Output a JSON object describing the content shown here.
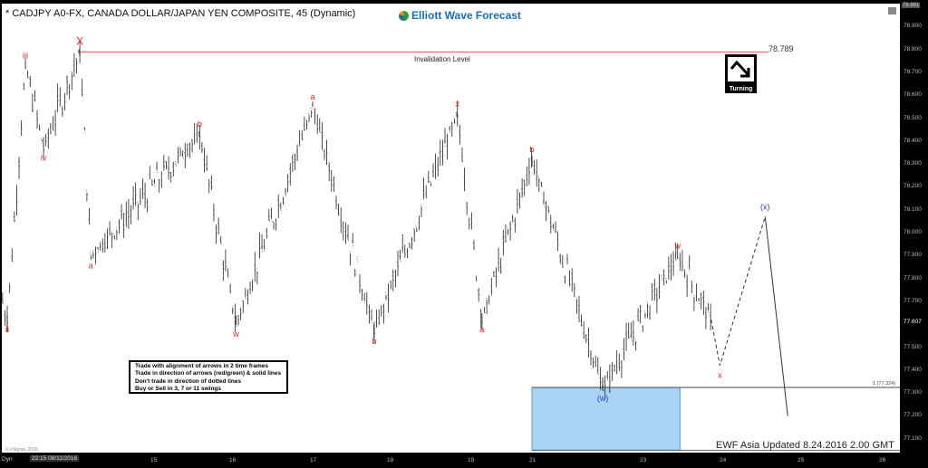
{
  "header": {
    "title": "* CADJPY A0-FX, CANADA DOLLAR/JAPAN YEN COMPOSITE, 45 (Dynamic)",
    "logo_text": "Elliott Wave Forecast"
  },
  "info_box": [
    "Trade with alignment of arrows in 2 time frames",
    "Trade in direction of arrows (red/green) & solid lines",
    "Don't trade in direction of dotted lines",
    "Buy or Sell in 3, 7 or 11 swings"
  ],
  "turning_label": "Turning",
  "footer": {
    "updated": "EWF Asia Updated 8.24.2016 2.00 GMT",
    "copyright": "© eSignal, 2016",
    "dyn": "Dyn",
    "start_label": "22:15 08/11/2016"
  },
  "colors": {
    "wave_red": "#d42a1e",
    "wave_blue": "#2b3fc4",
    "invalidation": "#e05050",
    "zone": "#aad4f5"
  },
  "chart_data": {
    "type": "bar",
    "symbol": "CADJPY",
    "y_axis": {
      "top_label": "78.991",
      "ticks": [
        "78.900",
        "78.800",
        "78.700",
        "78.600",
        "78.500",
        "78.400",
        "78.300",
        "78.200",
        "78.100",
        "78.000",
        "77.900",
        "77.800",
        "77.700",
        "77.607",
        "77.500",
        "77.400",
        "77.300",
        "77.200",
        "77.100"
      ],
      "ylim": [
        77.04,
        78.99
      ]
    },
    "x_axis": {
      "ticks": [
        "15",
        "16",
        "17",
        "18",
        "19",
        "21",
        "23",
        "24",
        "25",
        "26"
      ]
    },
    "price_path": [
      [
        13.09,
        77.7
      ],
      [
        13.15,
        77.62
      ],
      [
        13.38,
        78.73
      ],
      [
        13.61,
        78.37
      ],
      [
        14.07,
        78.789
      ],
      [
        14.21,
        77.9
      ],
      [
        15.59,
        78.43
      ],
      [
        16.05,
        77.6
      ],
      [
        17.0,
        78.55
      ],
      [
        17.8,
        77.57
      ],
      [
        18.84,
        78.52
      ],
      [
        19.38,
        77.62
      ],
      [
        21.0,
        78.32
      ],
      [
        22.28,
        77.32
      ],
      [
        23.44,
        77.9
      ],
      [
        23.86,
        77.62
      ]
    ],
    "projection": {
      "dashed": [
        [
          23.86,
          77.62
        ],
        [
          23.97,
          77.42
        ],
        [
          24.55,
          78.07
        ]
      ],
      "solid": [
        [
          24.55,
          78.07
        ],
        [
          24.84,
          77.2
        ]
      ]
    },
    "invalidation": {
      "label": "Invalidation Level",
      "value": "78.789",
      "price": 78.789,
      "from": 14.07,
      "to": 24.6
    },
    "fib_level": {
      "label": "1 (77.324)",
      "price": 77.324
    },
    "target_zone": {
      "from": 21.0,
      "to": 23.47,
      "high": 77.324,
      "low": 77.05
    },
    "current_price": "77.607",
    "wave_labels": [
      {
        "text": "ii",
        "x": 13.15,
        "price": 77.62,
        "pos": "below",
        "color": "red"
      },
      {
        "text": "iii",
        "x": 13.38,
        "price": 78.73,
        "pos": "above",
        "color": "red"
      },
      {
        "text": "iv",
        "x": 13.61,
        "price": 78.37,
        "pos": "below",
        "color": "red"
      },
      {
        "text": "X",
        "x": 14.07,
        "price": 78.789,
        "pos": "above",
        "color": "red"
      },
      {
        "text": "a",
        "x": 14.21,
        "price": 77.9,
        "pos": "below",
        "color": "red"
      },
      {
        "text": "b",
        "x": 15.59,
        "price": 78.43,
        "pos": "above",
        "color": "red"
      },
      {
        "text": "w",
        "x": 16.05,
        "price": 77.6,
        "pos": "below",
        "color": "red"
      },
      {
        "text": "a",
        "x": 17.0,
        "price": 78.55,
        "pos": "above",
        "color": "red"
      },
      {
        "text": "b",
        "x": 17.8,
        "price": 77.57,
        "pos": "below",
        "color": "red"
      },
      {
        "text": "x",
        "x": 18.84,
        "price": 78.52,
        "pos": "above",
        "color": "red"
      },
      {
        "text": "a",
        "x": 19.38,
        "price": 77.62,
        "pos": "below",
        "color": "red"
      },
      {
        "text": "b",
        "x": 21.0,
        "price": 78.32,
        "pos": "above",
        "color": "red"
      },
      {
        "text": "(w)",
        "x": 22.28,
        "price": 77.32,
        "pos": "below",
        "color": "blue"
      },
      {
        "text": "w",
        "x": 23.44,
        "price": 77.9,
        "pos": "above",
        "color": "red"
      },
      {
        "text": "x",
        "x": 23.97,
        "price": 77.42,
        "pos": "below",
        "color": "red"
      },
      {
        "text": "(x)",
        "x": 24.55,
        "price": 78.07,
        "pos": "above",
        "color": "blue"
      }
    ]
  }
}
